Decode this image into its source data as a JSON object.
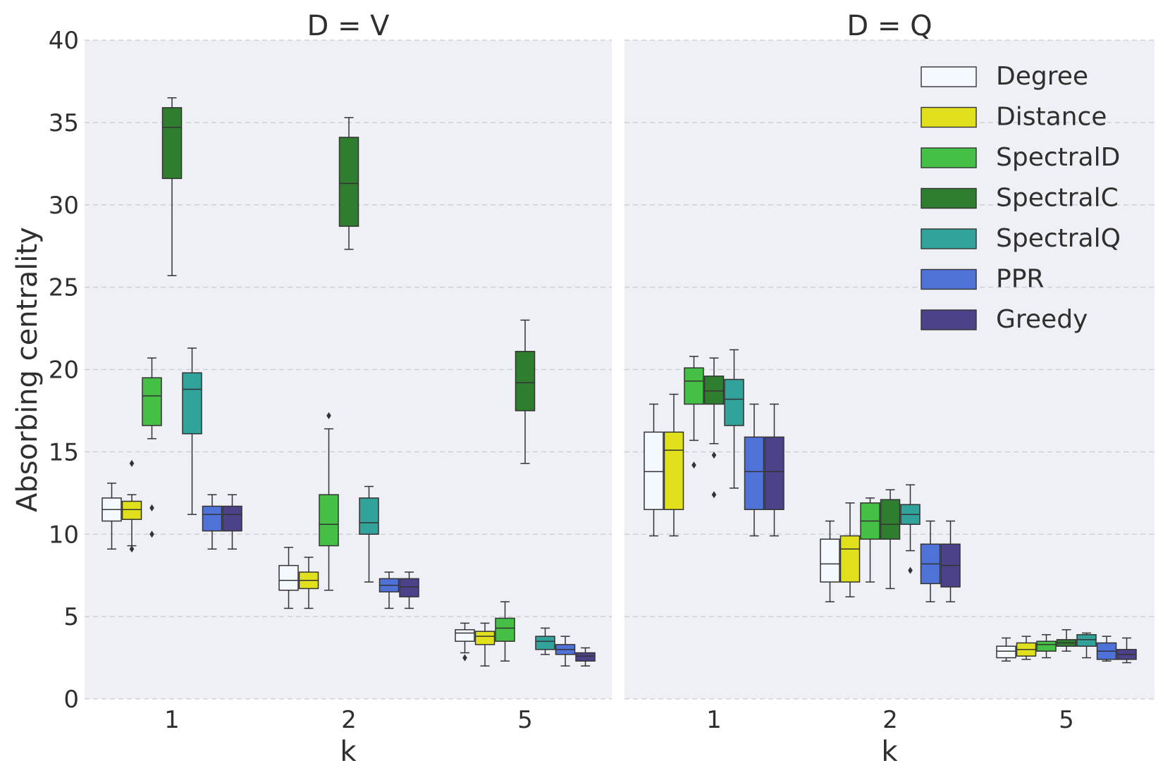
{
  "chart_data": {
    "type": "box",
    "ylabel": "Absorbing centrality",
    "ylim": [
      0,
      40
    ],
    "yticks": [
      0,
      5,
      10,
      15,
      20,
      25,
      30,
      35,
      40
    ],
    "grid": true,
    "legend_position": "top-right",
    "series": [
      {
        "name": "Degree",
        "color": "#f4f8ff"
      },
      {
        "name": "Distance",
        "color": "#e0e01d"
      },
      {
        "name": "SpectralD",
        "color": "#45bf45"
      },
      {
        "name": "SpectralC",
        "color": "#2f7d2f"
      },
      {
        "name": "SpectralQ",
        "color": "#31a39b"
      },
      {
        "name": "PPR",
        "color": "#4f72d8"
      },
      {
        "name": "Greedy",
        "color": "#4b428a"
      }
    ],
    "panels": [
      {
        "title": "D = V",
        "xlabel": "k",
        "categories": [
          "1",
          "2",
          "5"
        ],
        "boxes": [
          [
            {
              "series": "Degree",
              "min": 9.1,
              "q1": 10.8,
              "median": 11.5,
              "q3": 12.2,
              "max": 13.1,
              "outliers": []
            },
            {
              "series": "Distance",
              "min": 9.3,
              "q1": 10.9,
              "median": 11.5,
              "q3": 12.0,
              "max": 12.4,
              "outliers": [
                9.1,
                14.3
              ]
            },
            {
              "series": "SpectralD",
              "min": 15.8,
              "q1": 16.6,
              "median": 18.4,
              "q3": 19.5,
              "max": 20.7,
              "outliers": [
                10.0,
                11.6
              ]
            },
            {
              "series": "SpectralC",
              "min": 25.7,
              "q1": 31.6,
              "median": 34.7,
              "q3": 35.9,
              "max": 36.5,
              "outliers": []
            },
            {
              "series": "SpectralQ",
              "min": 11.2,
              "q1": 16.1,
              "median": 18.8,
              "q3": 19.8,
              "max": 21.3,
              "outliers": []
            },
            {
              "series": "PPR",
              "min": 9.1,
              "q1": 10.2,
              "median": 11.2,
              "q3": 11.7,
              "max": 12.4,
              "outliers": []
            },
            {
              "series": "Greedy",
              "min": 9.1,
              "q1": 10.2,
              "median": 11.2,
              "q3": 11.7,
              "max": 12.4,
              "outliers": []
            }
          ],
          [
            {
              "series": "Degree",
              "min": 5.5,
              "q1": 6.6,
              "median": 7.2,
              "q3": 8.1,
              "max": 9.2,
              "outliers": []
            },
            {
              "series": "Distance",
              "min": 5.5,
              "q1": 6.7,
              "median": 7.2,
              "q3": 7.7,
              "max": 8.6,
              "outliers": []
            },
            {
              "series": "SpectralD",
              "min": 6.6,
              "q1": 9.3,
              "median": 10.6,
              "q3": 12.4,
              "max": 16.4,
              "outliers": [
                17.2
              ]
            },
            {
              "series": "SpectralC",
              "min": 27.3,
              "q1": 28.7,
              "median": 31.3,
              "q3": 34.1,
              "max": 35.3,
              "outliers": []
            },
            {
              "series": "SpectralQ",
              "min": 7.1,
              "q1": 10.0,
              "median": 10.7,
              "q3": 12.2,
              "max": 12.9,
              "outliers": []
            },
            {
              "series": "PPR",
              "min": 5.5,
              "q1": 6.5,
              "median": 6.9,
              "q3": 7.3,
              "max": 7.7,
              "outliers": []
            },
            {
              "series": "Greedy",
              "min": 5.5,
              "q1": 6.2,
              "median": 6.8,
              "q3": 7.3,
              "max": 7.7,
              "outliers": []
            }
          ],
          [
            {
              "series": "Degree",
              "min": 2.8,
              "q1": 3.5,
              "median": 4.0,
              "q3": 4.2,
              "max": 4.6,
              "outliers": [
                2.5
              ]
            },
            {
              "series": "Distance",
              "min": 2.0,
              "q1": 3.3,
              "median": 3.8,
              "q3": 4.1,
              "max": 4.6,
              "outliers": []
            },
            {
              "series": "SpectralD",
              "min": 2.3,
              "q1": 3.5,
              "median": 4.3,
              "q3": 4.9,
              "max": 5.9,
              "outliers": []
            },
            {
              "series": "SpectralC",
              "min": 14.3,
              "q1": 17.5,
              "median": 19.2,
              "q3": 21.1,
              "max": 23.0,
              "outliers": []
            },
            {
              "series": "SpectralQ",
              "min": 2.7,
              "q1": 3.0,
              "median": 3.5,
              "q3": 3.8,
              "max": 4.3,
              "outliers": []
            },
            {
              "series": "PPR",
              "min": 2.0,
              "q1": 2.7,
              "median": 3.0,
              "q3": 3.3,
              "max": 3.8,
              "outliers": []
            },
            {
              "series": "Greedy",
              "min": 2.0,
              "q1": 2.3,
              "median": 2.6,
              "q3": 2.8,
              "max": 3.1,
              "outliers": []
            }
          ]
        ]
      },
      {
        "title": "D = Q",
        "xlabel": "k",
        "categories": [
          "1",
          "2",
          "5"
        ],
        "boxes": [
          [
            {
              "series": "Degree",
              "min": 9.9,
              "q1": 11.5,
              "median": 13.8,
              "q3": 16.2,
              "max": 17.9,
              "outliers": []
            },
            {
              "series": "Distance",
              "min": 9.9,
              "q1": 11.5,
              "median": 15.1,
              "q3": 16.2,
              "max": 18.5,
              "outliers": []
            },
            {
              "series": "SpectralD",
              "min": 15.7,
              "q1": 17.9,
              "median": 19.3,
              "q3": 20.1,
              "max": 20.8,
              "outliers": [
                14.2
              ]
            },
            {
              "series": "SpectralC",
              "min": 15.5,
              "q1": 17.9,
              "median": 18.7,
              "q3": 19.6,
              "max": 20.7,
              "outliers": [
                12.4,
                14.8
              ]
            },
            {
              "series": "SpectralQ",
              "min": 12.8,
              "q1": 16.6,
              "median": 18.2,
              "q3": 19.4,
              "max": 21.2,
              "outliers": []
            },
            {
              "series": "PPR",
              "min": 9.9,
              "q1": 11.5,
              "median": 13.8,
              "q3": 15.9,
              "max": 17.9,
              "outliers": []
            },
            {
              "series": "Greedy",
              "min": 9.9,
              "q1": 11.5,
              "median": 13.8,
              "q3": 15.9,
              "max": 17.9,
              "outliers": []
            }
          ],
          [
            {
              "series": "Degree",
              "min": 5.9,
              "q1": 7.1,
              "median": 8.2,
              "q3": 9.7,
              "max": 10.8,
              "outliers": []
            },
            {
              "series": "Distance",
              "min": 6.2,
              "q1": 7.1,
              "median": 9.1,
              "q3": 9.9,
              "max": 11.9,
              "outliers": []
            },
            {
              "series": "SpectralD",
              "min": 7.1,
              "q1": 9.7,
              "median": 10.8,
              "q3": 11.9,
              "max": 12.2,
              "outliers": []
            },
            {
              "series": "SpectralC",
              "min": 6.7,
              "q1": 9.7,
              "median": 10.6,
              "q3": 12.1,
              "max": 12.7,
              "outliers": []
            },
            {
              "series": "SpectralQ",
              "min": 9.0,
              "q1": 10.6,
              "median": 11.2,
              "q3": 11.8,
              "max": 13.0,
              "outliers": [
                7.8
              ]
            },
            {
              "series": "PPR",
              "min": 5.9,
              "q1": 7.0,
              "median": 8.2,
              "q3": 9.4,
              "max": 10.8,
              "outliers": []
            },
            {
              "series": "Greedy",
              "min": 5.9,
              "q1": 6.8,
              "median": 8.1,
              "q3": 9.4,
              "max": 10.8,
              "outliers": []
            }
          ],
          [
            {
              "series": "Degree",
              "min": 2.3,
              "q1": 2.5,
              "median": 2.9,
              "q3": 3.2,
              "max": 3.7,
              "outliers": []
            },
            {
              "series": "Distance",
              "min": 2.4,
              "q1": 2.6,
              "median": 3.0,
              "q3": 3.4,
              "max": 3.8,
              "outliers": []
            },
            {
              "series": "SpectralD",
              "min": 2.5,
              "q1": 2.9,
              "median": 3.3,
              "q3": 3.5,
              "max": 3.9,
              "outliers": []
            },
            {
              "series": "SpectralC",
              "min": 2.9,
              "q1": 3.2,
              "median": 3.4,
              "q3": 3.6,
              "max": 4.2,
              "outliers": []
            },
            {
              "series": "SpectralQ",
              "min": 2.5,
              "q1": 3.2,
              "median": 3.6,
              "q3": 3.9,
              "max": 4.0,
              "outliers": []
            },
            {
              "series": "PPR",
              "min": 2.3,
              "q1": 2.4,
              "median": 2.9,
              "q3": 3.4,
              "max": 3.8,
              "outliers": []
            },
            {
              "series": "Greedy",
              "min": 2.2,
              "q1": 2.4,
              "median": 2.7,
              "q3": 3.0,
              "max": 3.7,
              "outliers": []
            }
          ]
        ]
      }
    ]
  }
}
